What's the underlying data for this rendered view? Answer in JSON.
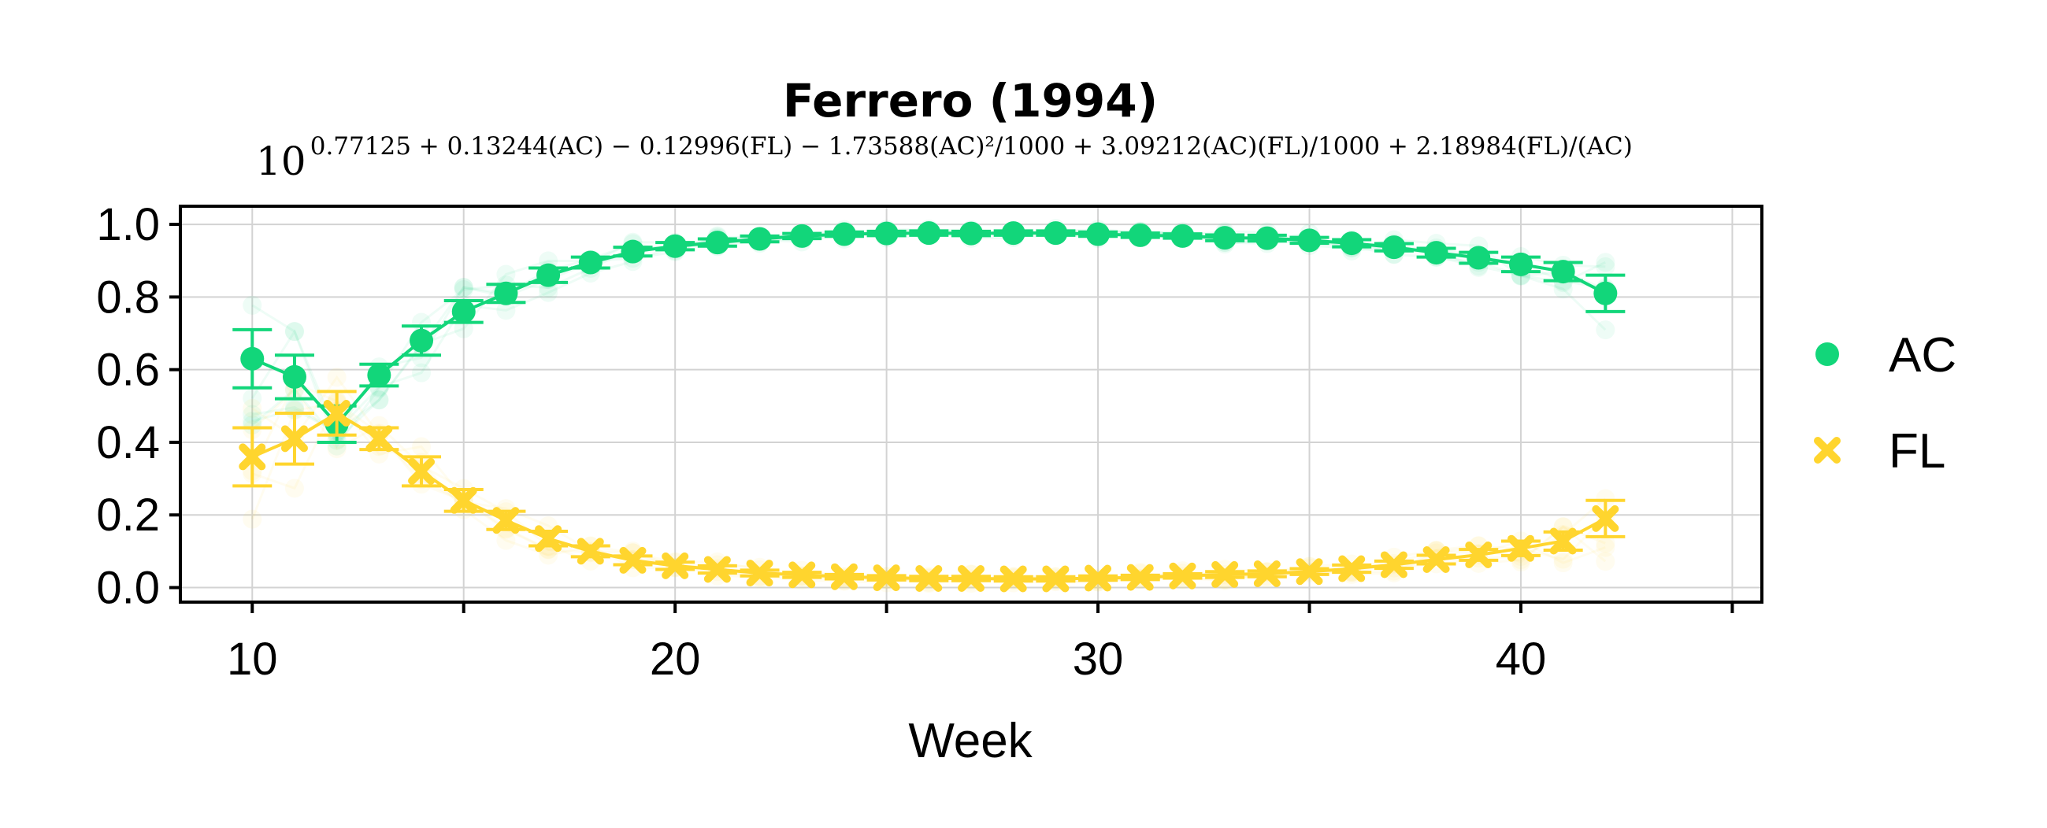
{
  "chart_data": {
    "type": "scatter",
    "title": "Ferrero (1994)",
    "subtitle_base": "10",
    "subtitle_exponent": "0.77125 + 0.13244(AC) − 0.12996(FL) − 1.73588(AC)²/1000 + 3.09212(AC)(FL)/1000 + 2.18984(FL)/(AC)",
    "xlabel": "Week",
    "ylabel": "",
    "xlim": [
      8.3,
      45.7
    ],
    "ylim": [
      -0.04,
      1.05
    ],
    "xticks": [
      10,
      20,
      30,
      40
    ],
    "xticks_minor": [
      15,
      25,
      35,
      45
    ],
    "yticks": [
      0.0,
      0.2,
      0.4,
      0.6,
      0.8,
      1.0
    ],
    "ytick_labels": [
      "0.0",
      "0.2",
      "0.4",
      "0.6",
      "0.8",
      "1.0"
    ],
    "grid": true,
    "legend_position": "right",
    "series": [
      {
        "name": "AC",
        "color": "#12d67a",
        "marker": "circle",
        "x": [
          10,
          11,
          12,
          13,
          14,
          15,
          16,
          17,
          18,
          19,
          20,
          21,
          22,
          23,
          24,
          25,
          26,
          27,
          28,
          29,
          30,
          31,
          32,
          33,
          34,
          35,
          36,
          37,
          38,
          39,
          40,
          41,
          42
        ],
        "y": [
          0.63,
          0.58,
          0.45,
          0.585,
          0.68,
          0.76,
          0.81,
          0.86,
          0.895,
          0.925,
          0.94,
          0.95,
          0.96,
          0.968,
          0.973,
          0.975,
          0.976,
          0.975,
          0.976,
          0.976,
          0.973,
          0.97,
          0.968,
          0.963,
          0.962,
          0.956,
          0.948,
          0.937,
          0.922,
          0.908,
          0.89,
          0.87,
          0.81
        ],
        "err": [
          0.08,
          0.06,
          0.05,
          0.03,
          0.04,
          0.03,
          0.025,
          0.02,
          0.015,
          0.012,
          0.01,
          0.01,
          0.008,
          0.007,
          0.006,
          0.006,
          0.006,
          0.006,
          0.006,
          0.006,
          0.006,
          0.006,
          0.006,
          0.008,
          0.008,
          0.008,
          0.01,
          0.01,
          0.012,
          0.015,
          0.02,
          0.025,
          0.05
        ]
      },
      {
        "name": "FL",
        "color": "#ffd52e",
        "marker": "x",
        "x": [
          10,
          11,
          12,
          13,
          14,
          15,
          16,
          17,
          18,
          19,
          20,
          21,
          22,
          23,
          24,
          25,
          26,
          27,
          28,
          29,
          30,
          31,
          32,
          33,
          34,
          35,
          36,
          37,
          38,
          39,
          40,
          41,
          42
        ],
        "y": [
          0.36,
          0.41,
          0.48,
          0.41,
          0.32,
          0.24,
          0.185,
          0.135,
          0.1,
          0.075,
          0.06,
          0.05,
          0.04,
          0.035,
          0.03,
          0.027,
          0.025,
          0.025,
          0.024,
          0.024,
          0.026,
          0.028,
          0.032,
          0.036,
          0.038,
          0.044,
          0.052,
          0.063,
          0.077,
          0.09,
          0.108,
          0.128,
          0.19
        ],
        "err": [
          0.08,
          0.07,
          0.06,
          0.03,
          0.04,
          0.03,
          0.025,
          0.02,
          0.015,
          0.012,
          0.01,
          0.01,
          0.008,
          0.007,
          0.006,
          0.006,
          0.006,
          0.006,
          0.006,
          0.006,
          0.006,
          0.006,
          0.006,
          0.008,
          0.008,
          0.008,
          0.01,
          0.01,
          0.012,
          0.015,
          0.02,
          0.025,
          0.05
        ]
      }
    ]
  }
}
